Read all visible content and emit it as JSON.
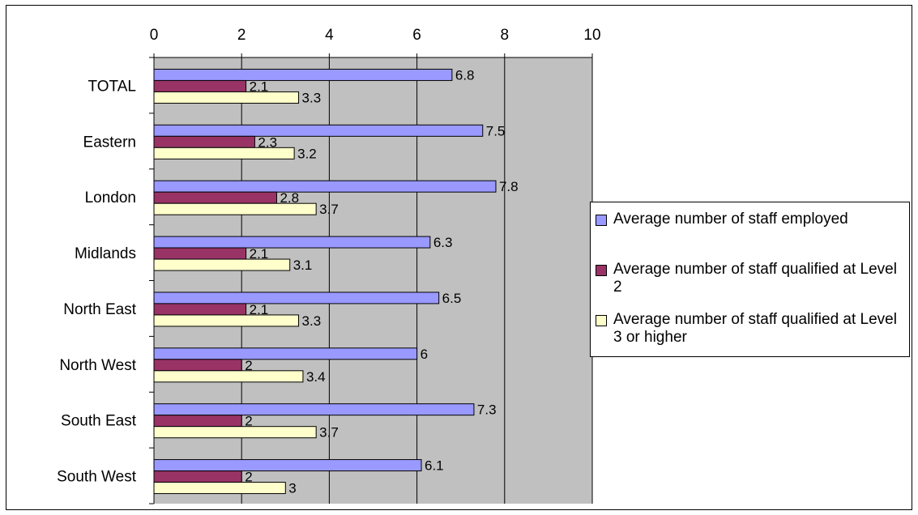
{
  "chart_data": {
    "type": "bar",
    "orientation": "horizontal",
    "categories": [
      "TOTAL",
      "Eastern",
      "London",
      "Midlands",
      "North East",
      "North West",
      "South East",
      "South West"
    ],
    "series": [
      {
        "name": "Average number of staff employed",
        "color": "#9999ff",
        "values": [
          6.8,
          7.5,
          7.8,
          6.3,
          6.5,
          6,
          7.3,
          6.1
        ],
        "labels": [
          "6.8",
          "7.5",
          "7.8",
          "6.3",
          "6.5",
          "6",
          "7.3",
          "6.1"
        ]
      },
      {
        "name": "Average number of staff qualified at Level 2",
        "color": "#993366",
        "values": [
          2.1,
          2.3,
          2.8,
          2.1,
          2.1,
          2,
          2,
          2
        ],
        "labels": [
          "2.1",
          "2.3",
          "2.8",
          "2.1",
          "2.1",
          "2",
          "2",
          "2"
        ]
      },
      {
        "name": "Average number of staff qualified at Level 3 or higher",
        "color": "#ffffcc",
        "values": [
          3.3,
          3.2,
          3.7,
          3.1,
          3.3,
          3.4,
          3.7,
          3
        ],
        "labels": [
          "3.3",
          "3.2",
          "3.7",
          "3.1",
          "3.3",
          "3.4",
          "3.7",
          "3"
        ]
      }
    ],
    "xlim": [
      0,
      10
    ],
    "xticks": [
      "0",
      "2",
      "4",
      "6",
      "8",
      "10"
    ],
    "x_axis_position": "top",
    "gridlines": true,
    "plot_background": "#c0c0c0",
    "legend_position": "right"
  }
}
